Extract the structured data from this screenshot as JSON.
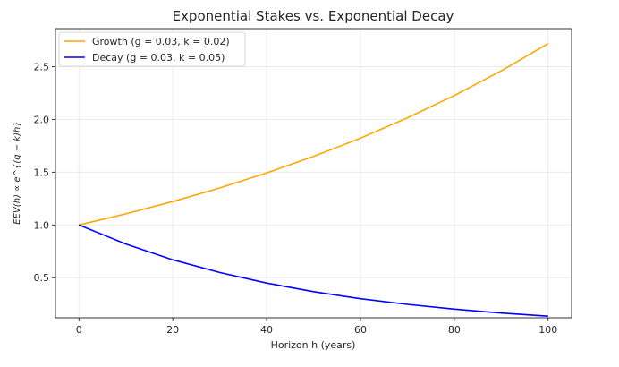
{
  "chart_data": {
    "type": "line",
    "title": "Exponential Stakes vs. Exponential Decay",
    "xlabel": "Horizon h (years)",
    "ylabel": "EEV(h) ∝ e^{(g − k)h}",
    "xlim": [
      -5,
      105
    ],
    "ylim": [
      0.12,
      2.86
    ],
    "xticks": [
      0,
      20,
      40,
      60,
      80,
      100
    ],
    "yticks": [
      0.5,
      1.0,
      1.5,
      2.0,
      2.5
    ],
    "xtick_labels": [
      "0",
      "20",
      "40",
      "60",
      "80",
      "100"
    ],
    "ytick_labels": [
      "0.5",
      "1.0",
      "1.5",
      "2.0",
      "2.5"
    ],
    "grid": true,
    "legend_position": "top-left",
    "x": [
      0,
      10,
      20,
      30,
      40,
      50,
      60,
      70,
      80,
      90,
      100
    ],
    "series": [
      {
        "name": "Growth (g = 0.03, k = 0.02)",
        "color": "#FFA500",
        "values": [
          1.0,
          1.105,
          1.221,
          1.35,
          1.492,
          1.649,
          1.822,
          2.014,
          2.226,
          2.46,
          2.718
        ]
      },
      {
        "name": "Decay (g = 0.03, k = 0.05)",
        "color": "#0000FF",
        "values": [
          1.0,
          0.819,
          0.67,
          0.549,
          0.449,
          0.368,
          0.301,
          0.247,
          0.202,
          0.165,
          0.135
        ]
      }
    ]
  }
}
